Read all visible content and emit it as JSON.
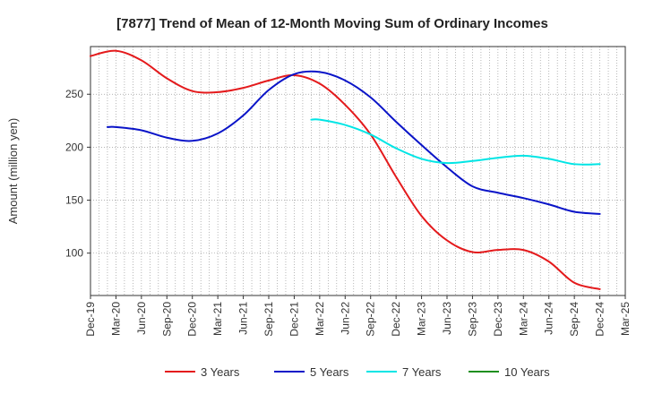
{
  "chart_data": {
    "type": "line",
    "title": "[7877]  Trend of Mean of 12-Month Moving Sum of Ordinary Incomes",
    "xlabel": "",
    "ylabel": "Amount (million yen)",
    "ylim": [
      60,
      295
    ],
    "y_ticks": [
      100,
      150,
      200,
      250
    ],
    "y_tick_labels": [
      "100",
      "150",
      "200",
      "250"
    ],
    "x_tick_labels": [
      "Dec-19",
      "Mar-20",
      "Jun-20",
      "Sep-20",
      "Dec-20",
      "Mar-21",
      "Jun-21",
      "Sep-21",
      "Dec-21",
      "Mar-22",
      "Jun-22",
      "Sep-22",
      "Dec-22",
      "Mar-23",
      "Jun-23",
      "Sep-23",
      "Dec-23",
      "Mar-24",
      "Jun-24",
      "Sep-24",
      "Dec-24",
      "Mar-25"
    ],
    "x_range_months": [
      0,
      63
    ],
    "grid": true,
    "legend_position": "bottom",
    "series": [
      {
        "name": "3 Years",
        "color": "#e41a1c",
        "x_months": [
          0,
          3,
          6,
          9,
          12,
          15,
          18,
          21,
          24,
          27,
          30,
          33,
          36,
          39,
          42,
          45,
          48,
          51,
          54,
          57,
          60
        ],
        "values": [
          286,
          291,
          282,
          265,
          253,
          252,
          256,
          263,
          268,
          260,
          240,
          212,
          172,
          135,
          112,
          101,
          103,
          103,
          92,
          72,
          66
        ]
      },
      {
        "name": "5 Years",
        "color": "#0a14c8",
        "x_months": [
          2,
          3,
          6,
          9,
          12,
          15,
          18,
          21,
          24,
          27,
          30,
          33,
          36,
          39,
          42,
          45,
          48,
          51,
          54,
          57,
          60
        ],
        "values": [
          219,
          219,
          216,
          209,
          206,
          213,
          230,
          254,
          269,
          271,
          263,
          247,
          224,
          202,
          181,
          163,
          157,
          152,
          146,
          139,
          137
        ]
      },
      {
        "name": "7 Years",
        "color": "#00e5e5",
        "x_months": [
          26,
          27,
          30,
          33,
          36,
          39,
          42,
          45,
          48,
          51,
          54,
          57,
          60
        ],
        "values": [
          226,
          226,
          221,
          212,
          199,
          189,
          185,
          187,
          190,
          192,
          189,
          184,
          184
        ]
      },
      {
        "name": "10 Years",
        "color": "#1f8f1f",
        "x_months": [],
        "values": []
      }
    ]
  }
}
